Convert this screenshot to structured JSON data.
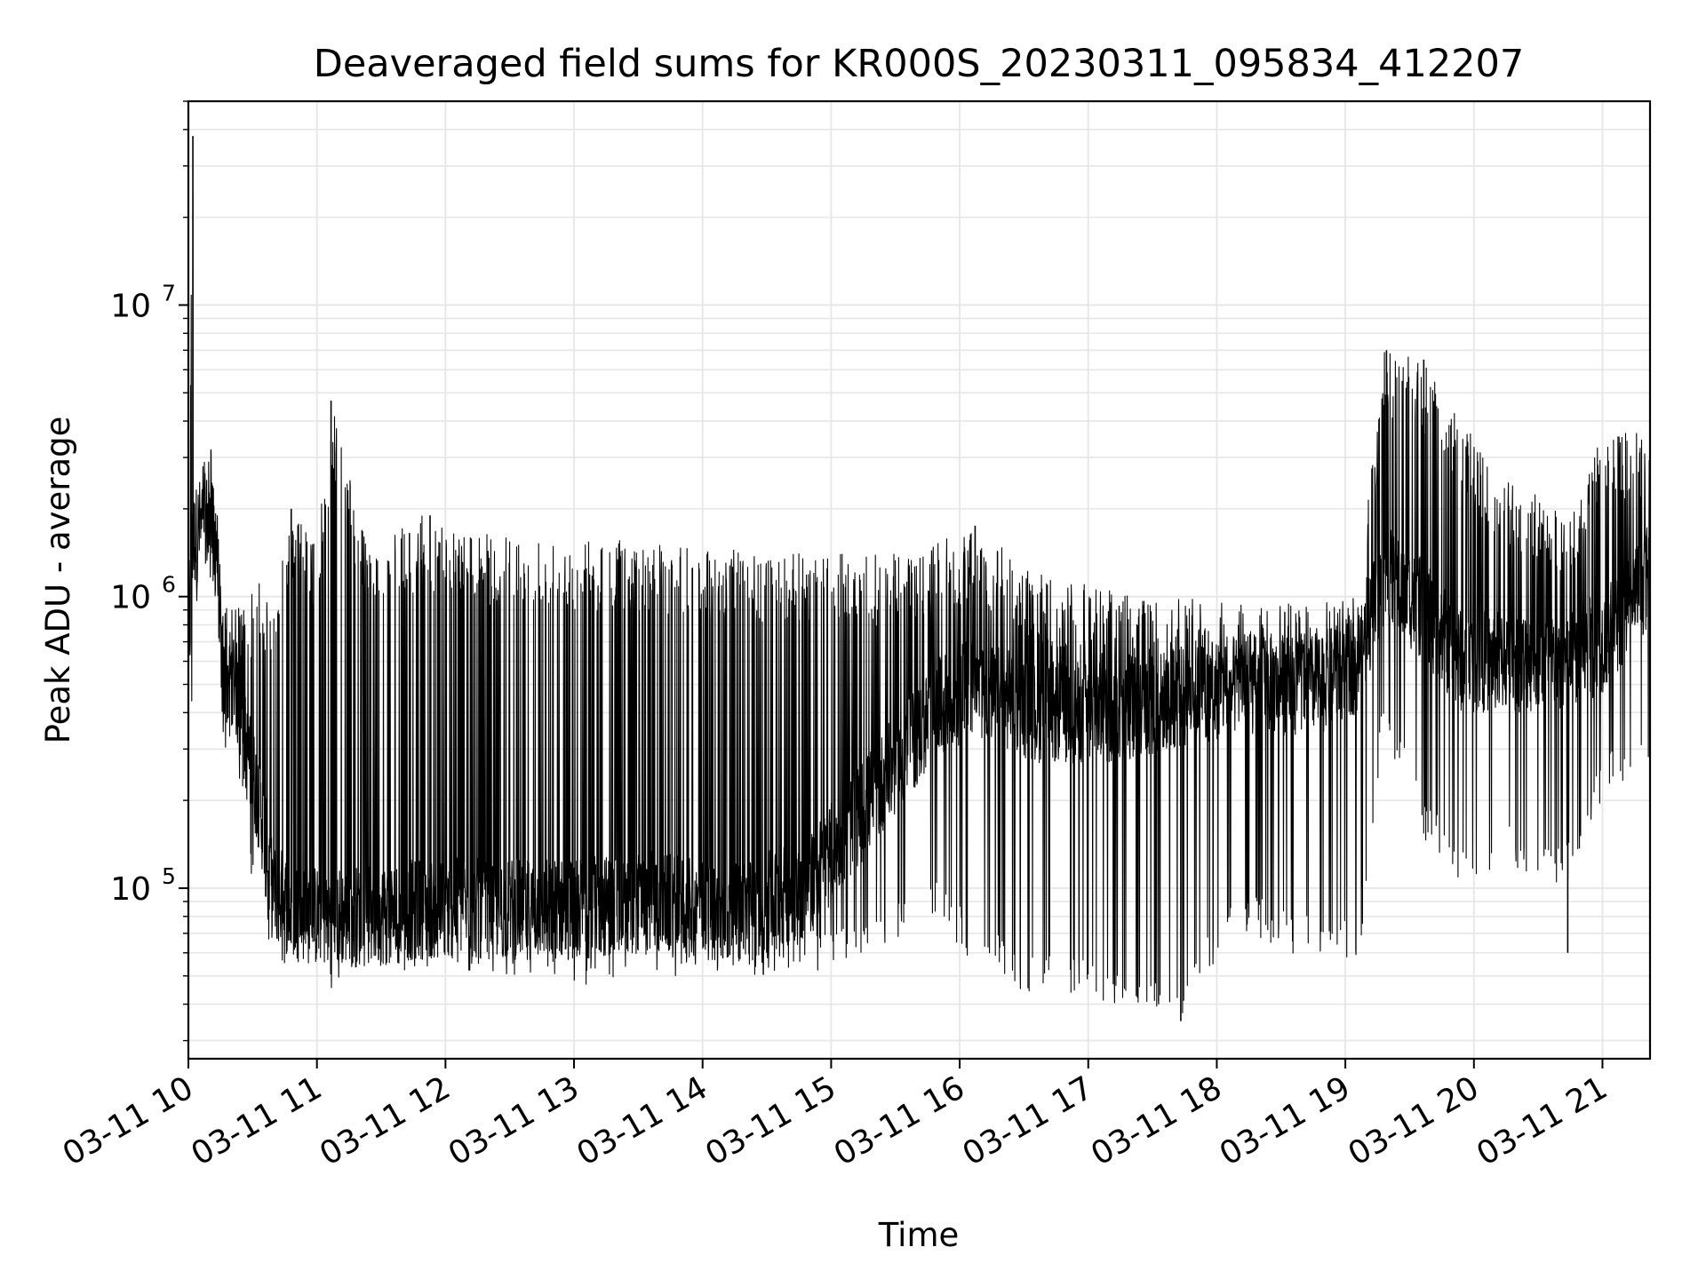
{
  "chart_data": {
    "type": "line",
    "title": "Deaveraged field sums for KR000S_20230311_095834_412207",
    "xlabel": "Time",
    "ylabel": "Peak ADU - average",
    "yscale": "log",
    "ylim": [
      26000,
      50000000
    ],
    "xlim": [
      10.0,
      21.37
    ],
    "grid": true,
    "colors": {
      "line": "#000000",
      "grid": "#e6e6e6",
      "axes": "#000000"
    },
    "x_ticks": [
      {
        "value": 10,
        "label": "03-11 10"
      },
      {
        "value": 11,
        "label": "03-11 11"
      },
      {
        "value": 12,
        "label": "03-11 12"
      },
      {
        "value": 13,
        "label": "03-11 13"
      },
      {
        "value": 14,
        "label": "03-11 14"
      },
      {
        "value": 15,
        "label": "03-11 15"
      },
      {
        "value": 16,
        "label": "03-11 16"
      },
      {
        "value": 17,
        "label": "03-11 17"
      },
      {
        "value": 18,
        "label": "03-11 18"
      },
      {
        "value": 19,
        "label": "03-11 19"
      },
      {
        "value": 20,
        "label": "03-11 20"
      },
      {
        "value": 21,
        "label": "03-11 21"
      }
    ],
    "y_ticks": [
      {
        "value": 100000,
        "base": "10",
        "exp": "5"
      },
      {
        "value": 1000000,
        "base": "10",
        "exp": "6"
      },
      {
        "value": 10000000,
        "base": "10",
        "exp": "7"
      }
    ],
    "series": [
      {
        "name": "Peak ADU - average",
        "envelope": [
          {
            "x": 10.0,
            "low": 300000,
            "high": 1000000,
            "typ": 500000
          },
          {
            "x": 10.03,
            "low": 400000,
            "high": 38000000,
            "typ": 1500000
          },
          {
            "x": 10.08,
            "low": 1300000,
            "high": 2500000,
            "typ": 1700000
          },
          {
            "x": 10.15,
            "low": 1300000,
            "high": 4200000,
            "typ": 1800000
          },
          {
            "x": 10.22,
            "low": 900000,
            "high": 2400000,
            "typ": 1500000
          },
          {
            "x": 10.27,
            "low": 250000,
            "high": 900000,
            "typ": 500000
          },
          {
            "x": 10.35,
            "low": 350000,
            "high": 1000000,
            "typ": 550000
          },
          {
            "x": 10.45,
            "low": 130000,
            "high": 900000,
            "typ": 300000
          },
          {
            "x": 10.55,
            "low": 85000,
            "high": 1200000,
            "typ": 200000
          },
          {
            "x": 10.65,
            "low": 55000,
            "high": 950000,
            "typ": 100000
          },
          {
            "x": 10.8,
            "low": 55000,
            "high": 2000000,
            "typ": 85000
          },
          {
            "x": 11.0,
            "low": 55000,
            "high": 1500000,
            "typ": 80000
          },
          {
            "x": 11.12,
            "low": 45000,
            "high": 4700000,
            "typ": 80000
          },
          {
            "x": 11.4,
            "low": 50000,
            "high": 1400000,
            "typ": 80000
          },
          {
            "x": 11.8,
            "low": 52000,
            "high": 1900000,
            "typ": 85000
          },
          {
            "x": 12.4,
            "low": 50000,
            "high": 1600000,
            "typ": 85000
          },
          {
            "x": 13.0,
            "low": 45000,
            "high": 1600000,
            "typ": 85000
          },
          {
            "x": 13.6,
            "low": 50000,
            "high": 1550000,
            "typ": 90000
          },
          {
            "x": 14.2,
            "low": 50000,
            "high": 1450000,
            "typ": 80000
          },
          {
            "x": 14.8,
            "low": 50000,
            "high": 1400000,
            "typ": 100000
          },
          {
            "x": 15.3,
            "low": 60000,
            "high": 1400000,
            "typ": 200000
          },
          {
            "x": 15.8,
            "low": 80000,
            "high": 1500000,
            "typ": 400000
          },
          {
            "x": 16.1,
            "low": 55000,
            "high": 1750000,
            "typ": 500000
          },
          {
            "x": 16.6,
            "low": 42000,
            "high": 1200000,
            "typ": 400000
          },
          {
            "x": 17.2,
            "low": 40000,
            "high": 1100000,
            "typ": 400000
          },
          {
            "x": 17.7,
            "low": 35000,
            "high": 1000000,
            "typ": 450000
          },
          {
            "x": 18.2,
            "low": 70000,
            "high": 950000,
            "typ": 500000
          },
          {
            "x": 18.8,
            "low": 55000,
            "high": 950000,
            "typ": 500000
          },
          {
            "x": 19.1,
            "low": 55000,
            "high": 1000000,
            "typ": 600000
          },
          {
            "x": 19.3,
            "low": 350000,
            "high": 7000000,
            "typ": 1200000
          },
          {
            "x": 19.6,
            "low": 150000,
            "high": 6500000,
            "typ": 900000
          },
          {
            "x": 19.9,
            "low": 100000,
            "high": 4000000,
            "typ": 600000
          },
          {
            "x": 20.3,
            "low": 120000,
            "high": 2500000,
            "typ": 600000
          },
          {
            "x": 20.7,
            "low": 95000,
            "high": 2000000,
            "typ": 600000
          },
          {
            "x": 21.0,
            "low": 200000,
            "high": 3500000,
            "typ": 700000
          },
          {
            "x": 21.37,
            "low": 250000,
            "high": 3900000,
            "typ": 1200000
          }
        ],
        "spikes": [
          {
            "x": 10.035,
            "value": 38000000
          },
          {
            "x": 11.11,
            "value": 4700000
          },
          {
            "x": 10.8,
            "value": 2000000
          },
          {
            "x": 11.88,
            "value": 1900000
          },
          {
            "x": 16.12,
            "value": 1750000
          },
          {
            "x": 19.32,
            "value": 7000000
          },
          {
            "x": 19.61,
            "value": 6500000
          },
          {
            "x": 17.72,
            "value": 35000
          },
          {
            "x": 20.73,
            "value": 60000
          }
        ]
      }
    ]
  }
}
